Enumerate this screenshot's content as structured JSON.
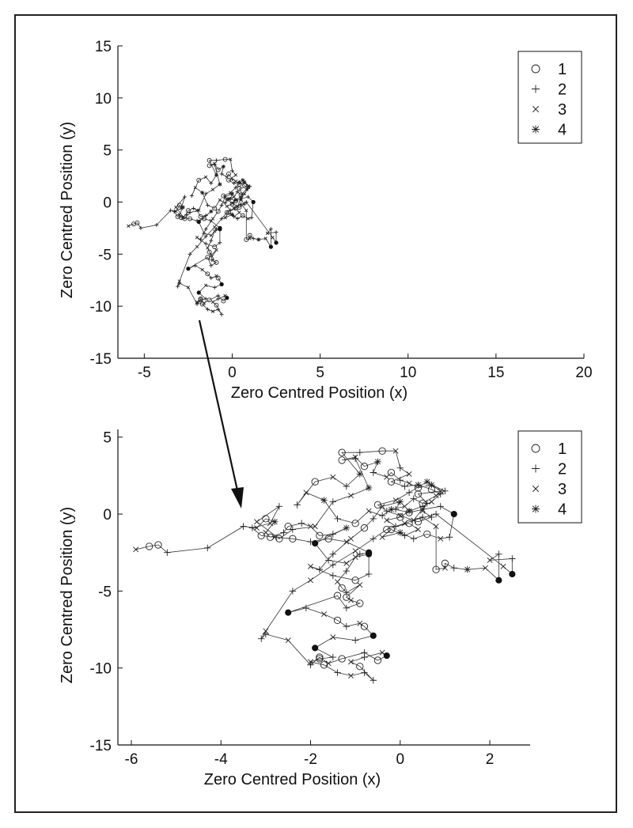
{
  "chart_data": [
    {
      "type": "scatter",
      "xlabel": "Zero Centred Position (x)",
      "ylabel": "Zero Centred Position (y)",
      "xlim": [
        -6.5,
        20
      ],
      "ylim": [
        -15,
        15
      ],
      "xticks": [
        -5,
        0,
        5,
        10,
        15,
        20
      ],
      "yticks": [
        -15,
        -10,
        -5,
        0,
        5,
        10,
        15
      ],
      "legend": {
        "position": "top-right",
        "entries": [
          {
            "label": "1",
            "marker": "circle"
          },
          {
            "label": "2",
            "marker": "plus"
          },
          {
            "label": "3",
            "marker": "cross"
          },
          {
            "label": "4",
            "marker": "star"
          }
        ]
      },
      "grid": false
    },
    {
      "type": "scatter",
      "xlabel": "Zero Centred Position (x)",
      "ylabel": "Zero Centred Position (y)",
      "xlim": [
        -6.3,
        2.9
      ],
      "ylim": [
        -15,
        5.5
      ],
      "xticks": [
        -6,
        -4,
        -2,
        0,
        2
      ],
      "yticks": [
        -15,
        -10,
        -5,
        0,
        5
      ],
      "legend": {
        "position": "top-right",
        "entries": [
          {
            "label": "1",
            "marker": "circle"
          },
          {
            "label": "2",
            "marker": "plus"
          },
          {
            "label": "3",
            "marker": "cross"
          },
          {
            "label": "4",
            "marker": "star"
          }
        ]
      },
      "grid": false
    }
  ],
  "trajectory": [
    [
      -5.9,
      -2.3,
      3
    ],
    [
      -5.6,
      -2.1,
      1
    ],
    [
      -5.4,
      -2.0,
      1
    ],
    [
      -5.2,
      -2.5,
      2
    ],
    [
      -4.3,
      -2.2,
      2
    ],
    [
      -3.5,
      -0.8,
      2
    ],
    [
      -3.2,
      -0.9,
      3
    ],
    [
      -3.0,
      -0.3,
      1
    ],
    [
      -2.8,
      -0.5,
      4
    ],
    [
      -3.0,
      -1.2,
      3
    ],
    [
      -2.9,
      -1.5,
      1
    ],
    [
      -2.6,
      -1.2,
      2
    ],
    [
      -2.5,
      -0.8,
      1
    ],
    [
      -2.2,
      -0.6,
      2
    ],
    [
      -2.0,
      -0.8,
      3
    ],
    [
      -1.8,
      -1.4,
      1
    ],
    [
      -1.5,
      -1.3,
      2
    ],
    [
      -1.2,
      -0.9,
      4
    ],
    [
      -1.9,
      -1.9,
      5
    ],
    [
      -1.6,
      -3.0,
      2
    ],
    [
      -1.2,
      -3.2,
      3
    ],
    [
      -0.9,
      -2.6,
      2
    ],
    [
      -0.7,
      -2.5,
      5
    ],
    [
      -1.2,
      -1.8,
      3
    ],
    [
      -1.6,
      -1.6,
      1
    ],
    [
      -2.0,
      -1.8,
      2
    ],
    [
      -2.4,
      -1.6,
      1
    ],
    [
      -2.8,
      -1.5,
      3
    ],
    [
      -3.1,
      -1.4,
      1
    ],
    [
      -3.3,
      -0.9,
      2
    ],
    [
      -2.9,
      -0.6,
      3
    ],
    [
      -2.7,
      0.5,
      2
    ],
    [
      -3.2,
      -0.5,
      3
    ],
    [
      -2.7,
      -1.6,
      1
    ],
    [
      -2.4,
      -1.0,
      2
    ],
    [
      -1.9,
      -0.8,
      3
    ],
    [
      -1.5,
      0.8,
      2
    ],
    [
      -1.1,
      1.2,
      3
    ],
    [
      -0.7,
      1.7,
      4
    ],
    [
      -1.0,
      3.6,
      2
    ],
    [
      -1.3,
      3.5,
      1
    ],
    [
      -1.0,
      3.7,
      3
    ],
    [
      -0.8,
      3.1,
      1
    ],
    [
      -0.5,
      3.4,
      4
    ],
    [
      -0.6,
      2.7,
      2
    ],
    [
      -0.3,
      2.4,
      3
    ],
    [
      -0.2,
      2.7,
      1
    ],
    [
      0.0,
      2.2,
      2
    ],
    [
      0.2,
      2.0,
      3
    ],
    [
      0.4,
      1.7,
      1
    ],
    [
      0.7,
      1.9,
      4
    ],
    [
      1.0,
      1.5,
      2
    ],
    [
      0.8,
      1.2,
      3
    ],
    [
      0.5,
      0.7,
      1
    ],
    [
      0.3,
      1.0,
      2
    ],
    [
      0.1,
      0.5,
      3
    ],
    [
      -0.2,
      0.3,
      4
    ],
    [
      -0.4,
      -0.1,
      2
    ],
    [
      -0.7,
      0.2,
      3
    ],
    [
      -1.0,
      -0.6,
      1
    ],
    [
      -1.4,
      -0.3,
      2
    ],
    [
      -1.7,
      0.9,
      4
    ],
    [
      -2.1,
      1.4,
      3
    ],
    [
      -2.3,
      0.6,
      2
    ],
    [
      -1.9,
      2.1,
      1
    ],
    [
      -1.5,
      2.4,
      3
    ],
    [
      -1.2,
      1.8,
      2
    ],
    [
      -0.9,
      2.6,
      4
    ],
    [
      -1.3,
      4.0,
      1
    ],
    [
      -0.9,
      4.0,
      2
    ],
    [
      -0.4,
      4.1,
      1
    ],
    [
      -0.1,
      4.1,
      3
    ],
    [
      0.0,
      3.0,
      2
    ],
    [
      0.2,
      2.6,
      3
    ],
    [
      -0.2,
      2.1,
      1
    ],
    [
      0.1,
      1.8,
      2
    ],
    [
      0.4,
      1.9,
      4
    ],
    [
      0.7,
      1.6,
      1
    ],
    [
      0.9,
      1.3,
      2
    ],
    [
      0.7,
      0.8,
      3
    ],
    [
      0.5,
      0.5,
      2
    ],
    [
      0.2,
      0.2,
      4
    ],
    [
      0.0,
      -0.2,
      1
    ],
    [
      -0.3,
      -0.4,
      3
    ],
    [
      -0.1,
      -0.8,
      2
    ],
    [
      0.2,
      -0.6,
      1
    ],
    [
      0.4,
      -1.0,
      3
    ],
    [
      0.1,
      -1.4,
      2
    ],
    [
      -0.2,
      -1.0,
      1
    ],
    [
      -0.4,
      -1.5,
      3
    ],
    [
      0.0,
      -1.2,
      4
    ],
    [
      0.3,
      -1.6,
      2
    ],
    [
      0.6,
      -1.3,
      1
    ],
    [
      0.9,
      -1.6,
      3
    ],
    [
      1.1,
      -1.5,
      2
    ],
    [
      1.2,
      0.0,
      5
    ],
    [
      0.9,
      0.5,
      2
    ],
    [
      0.5,
      0.3,
      3
    ],
    [
      0.2,
      0.1,
      1
    ],
    [
      -0.1,
      0.3,
      2
    ],
    [
      0.0,
      0.8,
      4
    ],
    [
      -0.4,
      0.5,
      3
    ],
    [
      -0.6,
      -0.3,
      2
    ],
    [
      -0.8,
      -0.9,
      1
    ],
    [
      -1.1,
      -1.6,
      3
    ],
    [
      -1.5,
      -2.6,
      2
    ],
    [
      -1.8,
      -3.6,
      2
    ],
    [
      -2.0,
      -3.4,
      3
    ],
    [
      -1.5,
      -4.0,
      2
    ],
    [
      -1.0,
      -4.3,
      1
    ],
    [
      -0.7,
      -3.9,
      2
    ],
    [
      -0.7,
      -2.6,
      5
    ],
    [
      -1.0,
      -2.8,
      3
    ],
    [
      -1.2,
      -3.7,
      2
    ],
    [
      -1.4,
      -4.4,
      3
    ],
    [
      -1.3,
      -4.8,
      1
    ],
    [
      -1.2,
      -5.1,
      2
    ],
    [
      -0.9,
      -4.6,
      3
    ],
    [
      -1.2,
      -5.4,
      1
    ],
    [
      -1.1,
      -5.6,
      3
    ],
    [
      -0.9,
      -5.8,
      1
    ],
    [
      -1.2,
      -6.1,
      2
    ],
    [
      -1.4,
      -5.3,
      1
    ],
    [
      -2.5,
      -6.4,
      5
    ],
    [
      -2.1,
      -6.1,
      2
    ],
    [
      -1.7,
      -6.5,
      3
    ],
    [
      -1.4,
      -6.9,
      1
    ],
    [
      -1.2,
      -7.3,
      2
    ],
    [
      -0.9,
      -7.1,
      3
    ],
    [
      -0.8,
      -7.3,
      1
    ],
    [
      -0.6,
      -7.9,
      5
    ],
    [
      -1.0,
      -8.2,
      2
    ],
    [
      -1.5,
      -8.0,
      3
    ],
    [
      -1.9,
      -8.7,
      5
    ],
    [
      -1.5,
      -9.3,
      2
    ],
    [
      -1.8,
      -9.4,
      1
    ],
    [
      -2.0,
      -9.6,
      3
    ],
    [
      -1.7,
      -9.8,
      1
    ],
    [
      -1.4,
      -10.3,
      2
    ],
    [
      -1.1,
      -10.5,
      3
    ],
    [
      -0.8,
      -10.3,
      2
    ],
    [
      -0.6,
      -10.8,
      2
    ],
    [
      -0.9,
      -9.9,
      1
    ],
    [
      -1.1,
      -9.6,
      3
    ],
    [
      -0.8,
      -9.3,
      2
    ],
    [
      -0.4,
      -9.0,
      3
    ],
    [
      -0.3,
      -9.2,
      5
    ],
    [
      -0.5,
      -9.5,
      1
    ],
    [
      -0.8,
      -9.0,
      2
    ],
    [
      -1.3,
      -9.4,
      1
    ],
    [
      -1.6,
      -9.7,
      3
    ],
    [
      -1.8,
      -9.3,
      1
    ],
    [
      -2.0,
      -9.8,
      2
    ],
    [
      -2.5,
      -8.2,
      3
    ],
    [
      -3.0,
      -7.8,
      2
    ],
    [
      -3.1,
      -8.1,
      2
    ],
    [
      -3.0,
      -7.6,
      3
    ],
    [
      -2.4,
      -5.0,
      2
    ],
    [
      -2.0,
      -4.3,
      3
    ],
    [
      -1.5,
      -3.3,
      2
    ],
    [
      -1.0,
      -2.4,
      3
    ],
    [
      -0.6,
      -1.6,
      2
    ],
    [
      -0.3,
      -1.0,
      1
    ],
    [
      0.1,
      -0.6,
      3
    ],
    [
      0.5,
      -0.2,
      2
    ],
    [
      0.8,
      -0.8,
      3
    ],
    [
      0.8,
      -3.6,
      1
    ],
    [
      1.0,
      -3.5,
      3
    ],
    [
      1.0,
      -3.2,
      1
    ],
    [
      1.2,
      -3.5,
      2
    ],
    [
      1.5,
      -3.6,
      4
    ],
    [
      1.9,
      -3.5,
      3
    ],
    [
      2.2,
      -4.3,
      5
    ],
    [
      2.2,
      -2.6,
      2
    ],
    [
      2.0,
      -3.0,
      3
    ],
    [
      2.5,
      -2.9,
      2
    ],
    [
      2.5,
      -3.9,
      5
    ],
    [
      2.3,
      -3.4,
      3
    ],
    [
      0.8,
      0.0,
      2
    ],
    [
      0.3,
      -0.4,
      3
    ],
    [
      0.6,
      0.7,
      2
    ],
    [
      0.4,
      1.3,
      1
    ],
    [
      0.9,
      1.5,
      3
    ],
    [
      0.6,
      2.1,
      4
    ],
    [
      0.2,
      1.4,
      2
    ],
    [
      -0.1,
      0.9,
      3
    ],
    [
      -0.5,
      0.6,
      1
    ],
    [
      -0.3,
      0.2,
      2
    ],
    [
      0.0,
      -0.1,
      3
    ],
    [
      0.4,
      -0.5,
      1
    ],
    [
      0.7,
      -0.2,
      2
    ],
    [
      0.5,
      0.2,
      3
    ]
  ]
}
